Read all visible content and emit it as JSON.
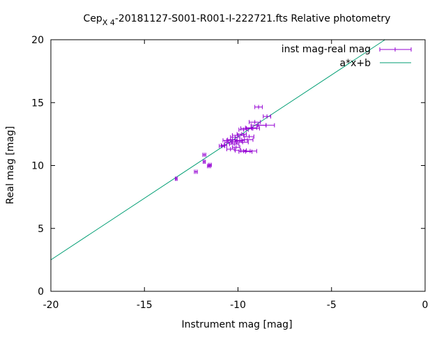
{
  "chart_data": {
    "type": "scatter",
    "title_prefix": "Cep",
    "title_subscript": "X 4",
    "title_suffix": "-20181127-S001-R001-I-222721.fts Relative photometry",
    "xlabel": "Instrument mag [mag]",
    "ylabel": "Real mag [mag]",
    "xlim": [
      -20,
      0
    ],
    "ylim": [
      0,
      20
    ],
    "xticks": [
      -20,
      -15,
      -10,
      -5,
      0
    ],
    "yticks": [
      0,
      5,
      10,
      15,
      20
    ],
    "grid": false,
    "legend_position": "top-right",
    "series": [
      {
        "name": "inst mag-real mag",
        "kind": "xerrorbars",
        "color": "#9400d3",
        "points": [
          {
            "x": -13.3,
            "y": 8.95,
            "xerr": 0.05
          },
          {
            "x": -12.25,
            "y": 9.5,
            "xerr": 0.08
          },
          {
            "x": -11.55,
            "y": 9.95,
            "xerr": 0.08
          },
          {
            "x": -11.5,
            "y": 10.05,
            "xerr": 0.08
          },
          {
            "x": -11.8,
            "y": 10.3,
            "xerr": 0.06
          },
          {
            "x": -11.8,
            "y": 10.85,
            "xerr": 0.08
          },
          {
            "x": -10.85,
            "y": 11.55,
            "xerr": 0.15
          },
          {
            "x": -10.75,
            "y": 11.6,
            "xerr": 0.15
          },
          {
            "x": -10.6,
            "y": 12.0,
            "xerr": 0.2
          },
          {
            "x": -10.5,
            "y": 11.85,
            "xerr": 0.2
          },
          {
            "x": -10.4,
            "y": 11.3,
            "xerr": 0.2
          },
          {
            "x": -10.35,
            "y": 11.85,
            "xerr": 0.25
          },
          {
            "x": -10.3,
            "y": 12.05,
            "xerr": 0.25
          },
          {
            "x": -10.2,
            "y": 11.7,
            "xerr": 0.25
          },
          {
            "x": -10.15,
            "y": 12.25,
            "xerr": 0.25
          },
          {
            "x": -10.1,
            "y": 11.45,
            "xerr": 0.2
          },
          {
            "x": -10.05,
            "y": 11.95,
            "xerr": 0.25
          },
          {
            "x": -10.0,
            "y": 12.4,
            "xerr": 0.3
          },
          {
            "x": -9.9,
            "y": 12.0,
            "xerr": 0.25
          },
          {
            "x": -9.85,
            "y": 11.2,
            "xerr": 0.3
          },
          {
            "x": -9.8,
            "y": 12.5,
            "xerr": 0.25
          },
          {
            "x": -9.75,
            "y": 11.85,
            "xerr": 0.3
          },
          {
            "x": -9.7,
            "y": 12.85,
            "xerr": 0.25
          },
          {
            "x": -9.6,
            "y": 11.1,
            "xerr": 0.35
          },
          {
            "x": -9.55,
            "y": 12.95,
            "xerr": 0.3
          },
          {
            "x": -9.5,
            "y": 12.05,
            "xerr": 0.3
          },
          {
            "x": -9.4,
            "y": 12.3,
            "xerr": 0.25
          },
          {
            "x": -9.35,
            "y": 11.15,
            "xerr": 0.35
          },
          {
            "x": -9.3,
            "y": 13.0,
            "xerr": 0.3
          },
          {
            "x": -9.2,
            "y": 12.95,
            "xerr": 0.35
          },
          {
            "x": -9.1,
            "y": 13.45,
            "xerr": 0.3
          },
          {
            "x": -8.9,
            "y": 13.2,
            "xerr": 0.4
          },
          {
            "x": -8.9,
            "y": 14.65,
            "xerr": 0.2
          },
          {
            "x": -8.5,
            "y": 13.2,
            "xerr": 0.45
          },
          {
            "x": -8.45,
            "y": 13.9,
            "xerr": 0.2
          }
        ]
      },
      {
        "name": "a*x+b",
        "kind": "line",
        "color": "#009e73",
        "slope": 0.98,
        "intercept": 22.1
      }
    ]
  }
}
